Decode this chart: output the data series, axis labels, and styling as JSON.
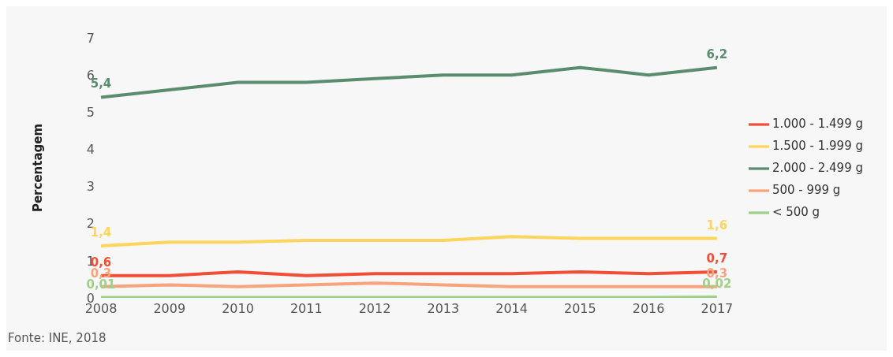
{
  "chart_data": {
    "type": "line",
    "ylabel": "Percentagem",
    "categories": [
      "2008",
      "2009",
      "2010",
      "2011",
      "2012",
      "2013",
      "2014",
      "2015",
      "2016",
      "2017"
    ],
    "series": [
      {
        "name": "< 500 g",
        "color": "#9ed08a",
        "values": [
          0.01,
          0.01,
          0.01,
          0.01,
          0.01,
          0.01,
          0.01,
          0.01,
          0.01,
          0.02
        ],
        "value_labels": [
          "0,01",
          null,
          null,
          null,
          null,
          null,
          null,
          null,
          null,
          "0,02"
        ]
      },
      {
        "name": "500 - 999 g",
        "color": "#f7a47c",
        "values": [
          0.3,
          0.35,
          0.3,
          0.35,
          0.4,
          0.35,
          0.3,
          0.3,
          0.3,
          0.3
        ],
        "value_labels": [
          "0,3",
          null,
          null,
          null,
          null,
          null,
          null,
          null,
          null,
          "0,3"
        ]
      },
      {
        "name": "1.000 - 1.499 g",
        "color": "#f04e37",
        "values": [
          0.6,
          0.6,
          0.7,
          0.6,
          0.65,
          0.65,
          0.65,
          0.7,
          0.65,
          0.7
        ],
        "value_labels": [
          "0,6",
          null,
          null,
          null,
          null,
          null,
          null,
          null,
          null,
          "0,7"
        ]
      },
      {
        "name": "1.500 - 1.999 g",
        "color": "#fdd55c",
        "values": [
          1.4,
          1.5,
          1.5,
          1.55,
          1.55,
          1.55,
          1.65,
          1.6,
          1.6,
          1.6
        ],
        "value_labels": [
          "1,4",
          null,
          null,
          null,
          null,
          null,
          null,
          null,
          null,
          "1,6"
        ]
      },
      {
        "name": "2.000 - 2.499 g",
        "color": "#5a8c6e",
        "values": [
          5.4,
          5.6,
          5.8,
          5.8,
          5.9,
          6.0,
          6.0,
          6.2,
          6.0,
          6.2
        ],
        "value_labels": [
          "5,4",
          null,
          null,
          null,
          null,
          null,
          null,
          null,
          null,
          "6,2"
        ]
      }
    ],
    "ylim": [
      0,
      7
    ],
    "yticks": [
      0,
      1,
      2,
      3,
      4,
      5,
      6,
      7
    ],
    "grid": false,
    "legend": "right",
    "marker": "none",
    "line_style": "solid",
    "annotations": [
      "Fonte: INE, 2018"
    ]
  }
}
